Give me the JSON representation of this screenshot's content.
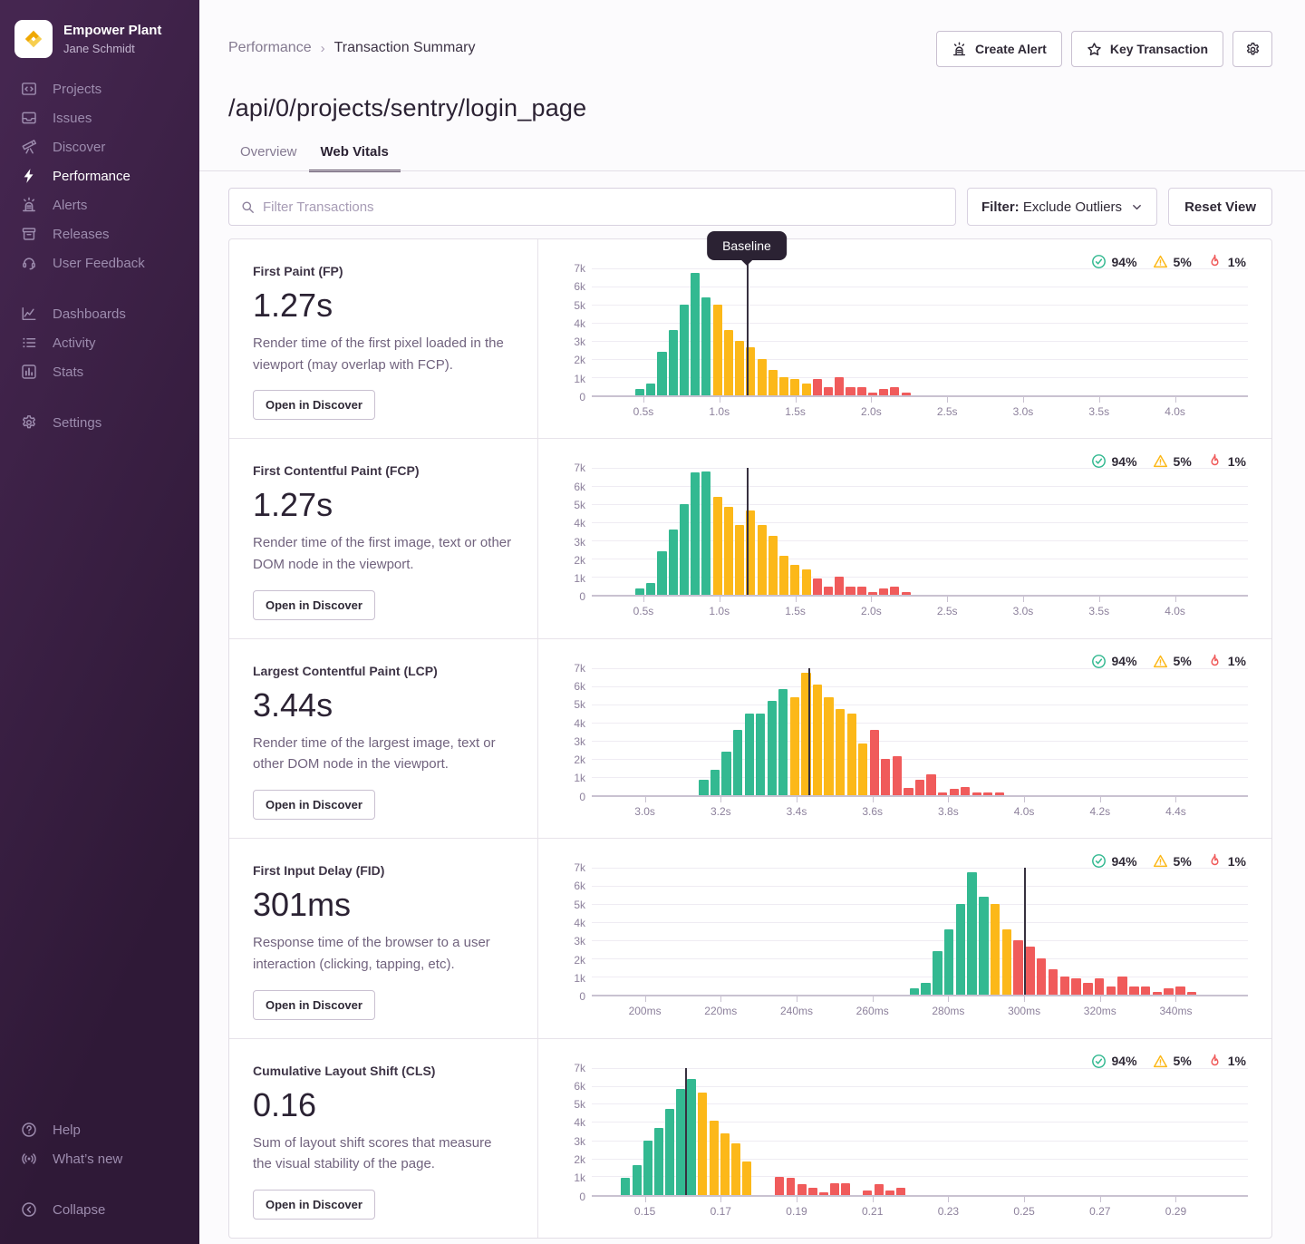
{
  "colors": {
    "good": "#33b991",
    "meh": "#fcb819",
    "poor": "#f05b5b",
    "baseline": "#37313f",
    "tab_underline": "#5f5167",
    "sidebar_gradient": [
      "#2f1937",
      "#452650"
    ],
    "logo_gold": "#efa803"
  },
  "sidebar": {
    "org_name": "Empower Plant",
    "user_name": "Jane Schmidt",
    "items": [
      {
        "label": "Projects",
        "icon": "projects",
        "active": false,
        "section": 1
      },
      {
        "label": "Issues",
        "icon": "issues",
        "active": false,
        "section": 1
      },
      {
        "label": "Discover",
        "icon": "discover",
        "active": false,
        "section": 1
      },
      {
        "label": "Performance",
        "icon": "performance",
        "active": true,
        "section": 1
      },
      {
        "label": "Alerts",
        "icon": "siren",
        "active": false,
        "section": 1
      },
      {
        "label": "Releases",
        "icon": "releases",
        "active": false,
        "section": 1
      },
      {
        "label": "User Feedback",
        "icon": "user-feedback",
        "active": false,
        "section": 1
      },
      {
        "label": "Dashboards",
        "icon": "dashboards",
        "active": false,
        "section": 2
      },
      {
        "label": "Activity",
        "icon": "activity",
        "active": false,
        "section": 2
      },
      {
        "label": "Stats",
        "icon": "stats",
        "active": false,
        "section": 2
      },
      {
        "label": "Settings",
        "icon": "gear",
        "active": false,
        "section": 3
      }
    ],
    "footer_items": [
      {
        "label": "Help",
        "icon": "help",
        "section": 1
      },
      {
        "label": "What’s new",
        "icon": "broadcast",
        "section": 1
      },
      {
        "label": "Collapse",
        "icon": "collapse",
        "section": 2
      }
    ]
  },
  "header": {
    "breadcrumb": {
      "parent": "Performance",
      "current": "Transaction Summary"
    },
    "title": "/api/0/projects/sentry/login_page",
    "buttons": {
      "create_alert": "Create Alert",
      "key_transaction": "Key Transaction"
    },
    "tabs": [
      {
        "label": "Overview",
        "active": false
      },
      {
        "label": "Web Vitals",
        "active": true
      }
    ]
  },
  "filter_bar": {
    "search_placeholder": "Filter Transactions",
    "filter_prefix": "Filter:",
    "filter_value": "Exclude Outliers",
    "reset_label": "Reset View"
  },
  "vitals": [
    {
      "name": "First Paint (FP)",
      "value": "1.27s",
      "description": "Render time of the first pixel loaded in the viewport (may overlap with FCP).",
      "button_label": "Open in Discover",
      "baseline_label": "Baseline",
      "badges": {
        "good": "94%",
        "meh": "5%",
        "poor": "1%"
      }
    },
    {
      "name": "First Contentful Paint (FCP)",
      "value": "1.27s",
      "description": "Render time of the first image, text or other DOM node in the viewport.",
      "button_label": "Open in Discover",
      "baseline_label": null,
      "badges": {
        "good": "94%",
        "meh": "5%",
        "poor": "1%"
      }
    },
    {
      "name": "Largest Contentful Paint (LCP)",
      "value": "3.44s",
      "description": "Render time of the largest image, text or other DOM node in the viewport.",
      "button_label": "Open in Discover",
      "baseline_label": null,
      "badges": {
        "good": "94%",
        "meh": "5%",
        "poor": "1%"
      }
    },
    {
      "name": "First Input Delay (FID)",
      "value": "301ms",
      "description": "Response time of the browser to a user interaction (clicking, tapping, etc).",
      "button_label": "Open in Discover",
      "baseline_label": null,
      "badges": {
        "good": "94%",
        "meh": "5%",
        "poor": "1%"
      }
    },
    {
      "name": "Cumulative Layout Shift (CLS)",
      "value": "0.16",
      "description": "Sum of layout shift scores that measure the visual stability of the page.",
      "button_label": "Open in Discover",
      "baseline_label": null,
      "badges": {
        "good": "94%",
        "meh": "5%",
        "poor": "1%"
      }
    }
  ],
  "chart_data": [
    {
      "type": "bar",
      "metric": "First Paint (FP)",
      "ylim": [
        0,
        7000
      ],
      "y_tick_labels": [
        "7k",
        "6k",
        "5k",
        "4k",
        "3k",
        "2k",
        "1k",
        "0"
      ],
      "x_min": 0.16,
      "x_max": 4.48,
      "bin_start": 0.44,
      "bin_width": 0.073,
      "baseline": 1.18,
      "x_ticks": [
        {
          "v": 0.5,
          "label": "0.5s"
        },
        {
          "v": 1.0,
          "label": "1.0s"
        },
        {
          "v": 1.5,
          "label": "1.5s"
        },
        {
          "v": 2.0,
          "label": "2.0s"
        },
        {
          "v": 2.5,
          "label": "2.5s"
        },
        {
          "v": 3.0,
          "label": "3.0s"
        },
        {
          "v": 3.5,
          "label": "3.5s"
        },
        {
          "v": 4.0,
          "label": "4.0s"
        }
      ],
      "bars": [
        [
          350,
          "g"
        ],
        [
          650,
          "g"
        ],
        [
          2400,
          "g"
        ],
        [
          3600,
          "g"
        ],
        [
          5000,
          "g"
        ],
        [
          6750,
          "g"
        ],
        [
          5400,
          "g"
        ],
        [
          5000,
          "y"
        ],
        [
          3600,
          "y"
        ],
        [
          3000,
          "y"
        ],
        [
          2650,
          "y"
        ],
        [
          2000,
          "y"
        ],
        [
          1400,
          "y"
        ],
        [
          1000,
          "y"
        ],
        [
          900,
          "y"
        ],
        [
          650,
          "y"
        ],
        [
          900,
          "r"
        ],
        [
          450,
          "r"
        ],
        [
          1000,
          "r"
        ],
        [
          450,
          "r"
        ],
        [
          450,
          "r"
        ],
        [
          150,
          "r"
        ],
        [
          350,
          "r"
        ],
        [
          450,
          "r"
        ],
        [
          150,
          "r"
        ]
      ]
    },
    {
      "type": "bar",
      "metric": "First Contentful Paint (FCP)",
      "ylim": [
        0,
        7000
      ],
      "y_tick_labels": [
        "7k",
        "6k",
        "5k",
        "4k",
        "3k",
        "2k",
        "1k",
        "0"
      ],
      "x_min": 0.16,
      "x_max": 4.48,
      "bin_start": 0.44,
      "bin_width": 0.073,
      "baseline": 1.18,
      "x_ticks": [
        {
          "v": 0.5,
          "label": "0.5s"
        },
        {
          "v": 1.0,
          "label": "1.0s"
        },
        {
          "v": 1.5,
          "label": "1.5s"
        },
        {
          "v": 2.0,
          "label": "2.0s"
        },
        {
          "v": 2.5,
          "label": "2.5s"
        },
        {
          "v": 3.0,
          "label": "3.0s"
        },
        {
          "v": 3.5,
          "label": "3.5s"
        },
        {
          "v": 4.0,
          "label": "4.0s"
        }
      ],
      "bars": [
        [
          350,
          "g"
        ],
        [
          650,
          "g"
        ],
        [
          2400,
          "g"
        ],
        [
          3600,
          "g"
        ],
        [
          5000,
          "g"
        ],
        [
          6750,
          "g"
        ],
        [
          6800,
          "g"
        ],
        [
          5400,
          "y"
        ],
        [
          4850,
          "y"
        ],
        [
          3850,
          "y"
        ],
        [
          4650,
          "y"
        ],
        [
          3850,
          "y"
        ],
        [
          3250,
          "y"
        ],
        [
          2150,
          "y"
        ],
        [
          1650,
          "y"
        ],
        [
          1400,
          "y"
        ],
        [
          900,
          "r"
        ],
        [
          450,
          "r"
        ],
        [
          1000,
          "r"
        ],
        [
          450,
          "r"
        ],
        [
          450,
          "r"
        ],
        [
          150,
          "r"
        ],
        [
          350,
          "r"
        ],
        [
          450,
          "r"
        ],
        [
          150,
          "r"
        ]
      ]
    },
    {
      "type": "bar",
      "metric": "Largest Contentful Paint (LCP)",
      "ylim": [
        0,
        7000
      ],
      "y_tick_labels": [
        "7k",
        "6k",
        "5k",
        "4k",
        "3k",
        "2k",
        "1k",
        "0"
      ],
      "x_min": 2.86,
      "x_max": 4.59,
      "bin_start": 3.14,
      "bin_width": 0.03,
      "baseline": 3.43,
      "x_ticks": [
        {
          "v": 3.0,
          "label": "3.0s"
        },
        {
          "v": 3.2,
          "label": "3.2s"
        },
        {
          "v": 3.4,
          "label": "3.4s"
        },
        {
          "v": 3.6,
          "label": "3.6s"
        },
        {
          "v": 3.8,
          "label": "3.8s"
        },
        {
          "v": 4.0,
          "label": "4.0s"
        },
        {
          "v": 4.2,
          "label": "4.2s"
        },
        {
          "v": 4.4,
          "label": "4.4s"
        }
      ],
      "bars": [
        [
          850,
          "g"
        ],
        [
          1400,
          "g"
        ],
        [
          2400,
          "g"
        ],
        [
          3600,
          "g"
        ],
        [
          4500,
          "g"
        ],
        [
          4500,
          "g"
        ],
        [
          5200,
          "g"
        ],
        [
          5850,
          "g"
        ],
        [
          5400,
          "y"
        ],
        [
          6750,
          "y"
        ],
        [
          6100,
          "y"
        ],
        [
          5400,
          "y"
        ],
        [
          4750,
          "y"
        ],
        [
          4500,
          "y"
        ],
        [
          2850,
          "y"
        ],
        [
          3600,
          "r"
        ],
        [
          2000,
          "r"
        ],
        [
          2150,
          "r"
        ],
        [
          400,
          "r"
        ],
        [
          850,
          "r"
        ],
        [
          1150,
          "r"
        ],
        [
          150,
          "r"
        ],
        [
          350,
          "r"
        ],
        [
          450,
          "r"
        ],
        [
          150,
          "r"
        ],
        [
          150,
          "r"
        ],
        [
          150,
          "r"
        ]
      ]
    },
    {
      "type": "bar",
      "metric": "First Input Delay (FID)",
      "ylim": [
        0,
        7000
      ],
      "y_tick_labels": [
        "7k",
        "6k",
        "5k",
        "4k",
        "3k",
        "2k",
        "1k",
        "0"
      ],
      "x_min": 186,
      "x_max": 359,
      "bin_start": 269.5,
      "bin_width": 3.05,
      "baseline": 300,
      "x_ticks": [
        {
          "v": 200,
          "label": "200ms"
        },
        {
          "v": 220,
          "label": "220ms"
        },
        {
          "v": 240,
          "label": "240ms"
        },
        {
          "v": 260,
          "label": "260ms"
        },
        {
          "v": 280,
          "label": "280ms"
        },
        {
          "v": 300,
          "label": "300ms"
        },
        {
          "v": 320,
          "label": "320ms"
        },
        {
          "v": 340,
          "label": "340ms"
        }
      ],
      "bars": [
        [
          350,
          "g"
        ],
        [
          650,
          "g"
        ],
        [
          2400,
          "g"
        ],
        [
          3600,
          "g"
        ],
        [
          5000,
          "g"
        ],
        [
          6750,
          "g"
        ],
        [
          5400,
          "g"
        ],
        [
          5000,
          "y"
        ],
        [
          3600,
          "y"
        ],
        [
          3000,
          "r"
        ],
        [
          2650,
          "r"
        ],
        [
          2000,
          "r"
        ],
        [
          1400,
          "r"
        ],
        [
          1000,
          "r"
        ],
        [
          900,
          "r"
        ],
        [
          650,
          "r"
        ],
        [
          900,
          "r"
        ],
        [
          450,
          "r"
        ],
        [
          1000,
          "r"
        ],
        [
          450,
          "r"
        ],
        [
          450,
          "r"
        ],
        [
          150,
          "r"
        ],
        [
          350,
          "r"
        ],
        [
          450,
          "r"
        ],
        [
          150,
          "r"
        ]
      ]
    },
    {
      "type": "bar",
      "metric": "Cumulative Layout Shift (CLS)",
      "ylim": [
        0,
        7000
      ],
      "y_tick_labels": [
        "7k",
        "6k",
        "5k",
        "4k",
        "3k",
        "2k",
        "1k",
        "0"
      ],
      "x_min": 0.136,
      "x_max": 0.309,
      "bin_start": 0.1435,
      "bin_width": 0.0029,
      "baseline": 0.1605,
      "x_ticks": [
        {
          "v": 0.15,
          "label": "0.15"
        },
        {
          "v": 0.17,
          "label": "0.17"
        },
        {
          "v": 0.19,
          "label": "0.19"
        },
        {
          "v": 0.21,
          "label": "0.21"
        },
        {
          "v": 0.23,
          "label": "0.23"
        },
        {
          "v": 0.25,
          "label": "0.25"
        },
        {
          "v": 0.27,
          "label": "0.27"
        },
        {
          "v": 0.29,
          "label": "0.29"
        }
      ],
      "bars": [
        [
          950,
          "g"
        ],
        [
          1650,
          "g"
        ],
        [
          3000,
          "g"
        ],
        [
          3700,
          "g"
        ],
        [
          4750,
          "g"
        ],
        [
          5850,
          "g"
        ],
        [
          6400,
          "g"
        ],
        [
          5650,
          "y"
        ],
        [
          4100,
          "y"
        ],
        [
          3400,
          "y"
        ],
        [
          2850,
          "y"
        ],
        [
          1850,
          "y"
        ],
        null,
        null,
        [
          1000,
          "r"
        ],
        [
          950,
          "r"
        ],
        [
          600,
          "r"
        ],
        [
          400,
          "r"
        ],
        [
          150,
          "r"
        ],
        [
          650,
          "r"
        ],
        [
          650,
          "r"
        ],
        null,
        [
          250,
          "r"
        ],
        [
          600,
          "r"
        ],
        [
          250,
          "r"
        ],
        [
          400,
          "r"
        ]
      ]
    }
  ]
}
